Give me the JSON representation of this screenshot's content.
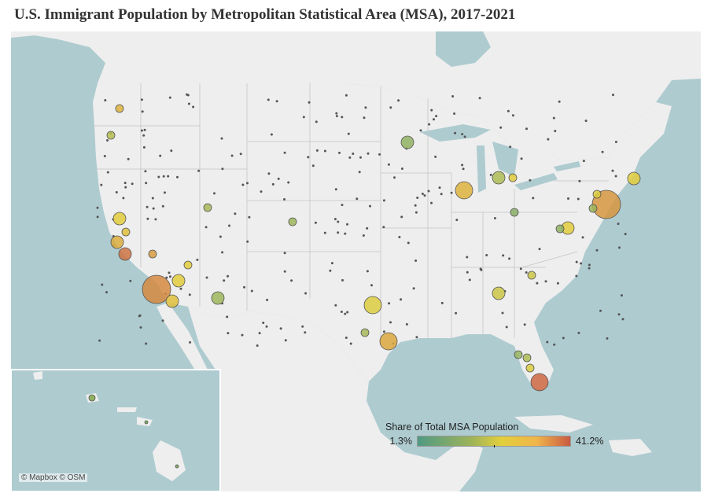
{
  "title": "U.S. Immigrant Population by Metropolitan Statistical Area (MSA), 2017-2021",
  "attribution": "© Mapbox © OSM",
  "colors": {
    "water": "#aecbd0",
    "land": "#eeeeee",
    "low": "#4f9a82",
    "mid": "#e3cf3c",
    "high": "#c95a43"
  },
  "legend": {
    "title": "Share of Total MSA Population",
    "min_label": "1.3%",
    "max_label": "41.2%",
    "min": 1.3,
    "max": 41.2
  },
  "msas": [
    {
      "size": "xl",
      "share": 33
    },
    {
      "size": "xl",
      "share": 31
    },
    {
      "size": "l",
      "share": 26
    },
    {
      "size": "l",
      "share": 20
    },
    {
      "size": "l",
      "share": 28
    },
    {
      "size": "l",
      "share": 39
    },
    {
      "size": "m",
      "share": 27
    },
    {
      "size": "m",
      "share": 22
    },
    {
      "size": "m",
      "share": 22
    },
    {
      "size": "m",
      "share": 24
    },
    {
      "size": "m",
      "share": 21
    },
    {
      "size": "m",
      "share": 22
    },
    {
      "size": "m",
      "share": 37
    },
    {
      "size": "m",
      "share": 12
    },
    {
      "size": "m",
      "share": 18
    },
    {
      "size": "m",
      "share": 10
    },
    {
      "size": "m",
      "share": 14
    },
    {
      "size": "s",
      "share": 11
    },
    {
      "size": "s",
      "share": 22
    },
    {
      "size": "s",
      "share": 26
    },
    {
      "size": "s",
      "share": 12
    },
    {
      "size": "s",
      "share": 10
    },
    {
      "size": "s",
      "share": 9
    },
    {
      "size": "s",
      "share": 13
    },
    {
      "size": "s",
      "share": 20
    },
    {
      "size": "s",
      "share": 30
    },
    {
      "size": "s",
      "share": 24
    },
    {
      "size": "s",
      "share": 14
    },
    {
      "size": "s",
      "share": 12
    },
    {
      "size": "s",
      "share": 15
    },
    {
      "size": "s",
      "share": 13
    },
    {
      "size": "s",
      "share": 22
    },
    {
      "size": "s",
      "share": 20
    },
    {
      "size": "s",
      "share": 18
    }
  ]
}
